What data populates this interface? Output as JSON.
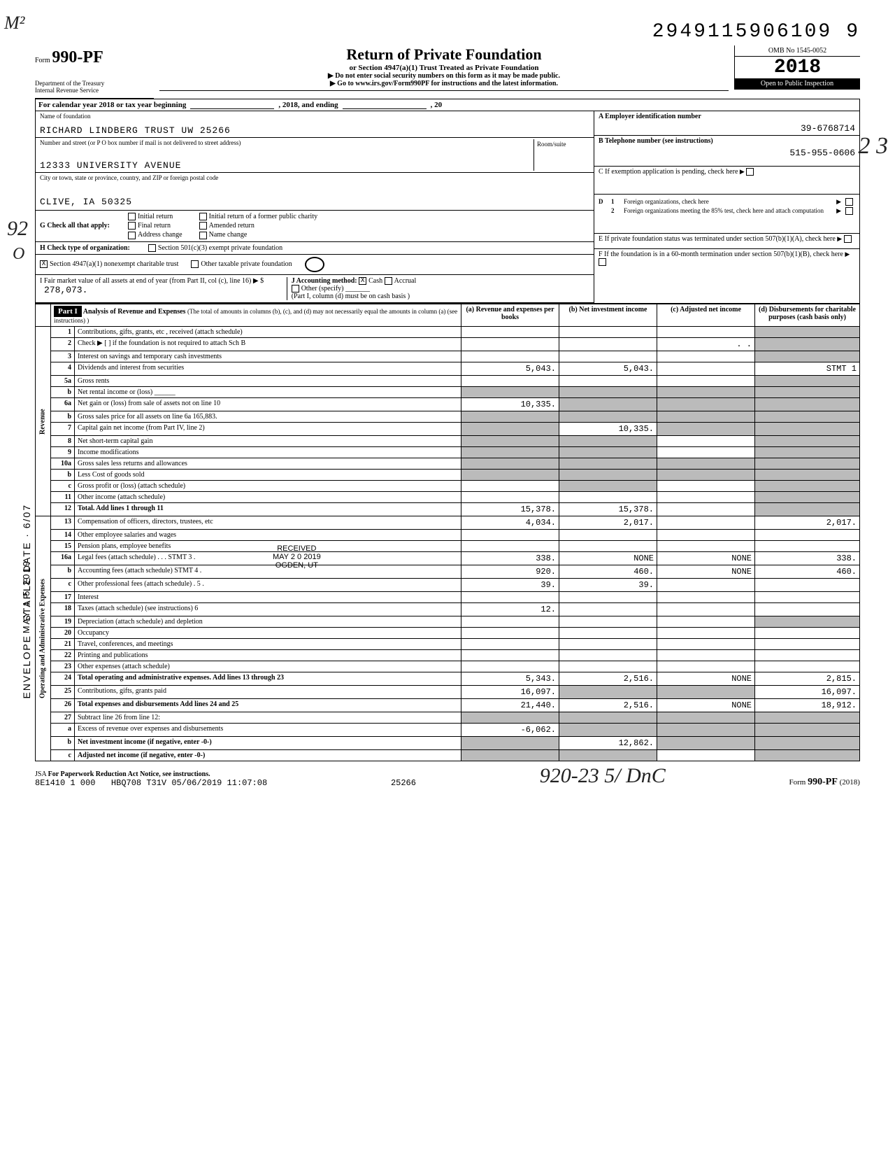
{
  "doc_number": "2949115906109",
  "doc_number_last": "9",
  "form": {
    "prefix": "Form",
    "number": "990-PF"
  },
  "dept": "Department of the Treasury\nInternal Revenue Service",
  "title": "Return of Private Foundation",
  "subtitle": "or Section 4947(a)(1) Trust Treated as Private Foundation",
  "instr1": "▶ Do not enter social security numbers on this form as it may be made public.",
  "instr2": "▶ Go to www.irs.gov/Form990PF for instructions and the latest information.",
  "omb": "OMB No 1545-0052",
  "year": "2018",
  "inspection": "Open to Public Inspection",
  "calendar_row": {
    "prefix": "For calendar year 2018 or tax year beginning",
    "mid": ", 2018, and ending",
    "suffix": ", 20"
  },
  "name_label": "Name of foundation",
  "name": "RICHARD LINDBERG TRUST UW 25266",
  "addr_label": "Number and street (or P O  box number if mail is not delivered to street address)",
  "addr": "12333 UNIVERSITY AVENUE",
  "room_label": "Room/suite",
  "city_label": "City or town, state or province, country, and ZIP or foreign postal code",
  "city": "CLIVE, IA 50325",
  "A_label": "A   Employer identification number",
  "A_value": "39-6768714",
  "B_label": "B   Telephone number (see instructions)",
  "B_value": "515-955-0606",
  "C_label": "C   If exemption application is pending, check here",
  "D_items": [
    "Foreign organizations, check here",
    "Foreign organizations meeting the 85% test, check here and attach computation"
  ],
  "E_label": "E   If private foundation status was terminated under section 507(b)(1)(A), check here",
  "F_label": "F   If the foundation is in a 60-month termination under section 507(b)(1)(B), check here",
  "G": {
    "lead": "G  Check all that apply:",
    "opts": [
      "Initial return",
      "Final return",
      "Address change",
      "Initial return of a former public charity",
      "Amended return",
      "Name change"
    ]
  },
  "H": {
    "lead": "H  Check type of organization:",
    "opts": [
      "Section 501(c)(3) exempt private foundation",
      "Section 4947(a)(1) nonexempt charitable trust",
      "Other taxable private foundation"
    ],
    "checked_index": 1
  },
  "I": {
    "text": "I   Fair market value of all assets at end of year (from Part II, col (c), line 16) ▶ $",
    "amount": "278,073."
  },
  "J": {
    "lead": "J  Accounting method:",
    "opts": [
      "Cash",
      "Accrual"
    ],
    "checked_index": 0,
    "other": "Other (specify)",
    "note": "(Part I, column (d) must be on cash basis )"
  },
  "part1": {
    "label": "Part I",
    "title": "Analysis of Revenue and Expenses",
    "title_note": "(The total of amounts in columns (b), (c), and (d) may not necessarily equal the amounts in column (a) (see instructions) )",
    "cols": [
      "(a) Revenue and expenses per books",
      "(b) Net investment income",
      "(c) Adjusted net income",
      "(d) Disbursements for charitable purposes (cash basis only)"
    ]
  },
  "vert_labels": [
    "Revenue",
    "Operating and Administrative Expenses"
  ],
  "stamp_date": "MAY 1 5 2019",
  "received": {
    "l1": "RECEIVED",
    "l2": "MAY 2 0 2019",
    "l3": "OGDEN, UT"
  },
  "rows": [
    {
      "n": "1",
      "desc": "Contributions, gifts, grants, etc , received (attach schedule)",
      "a": "",
      "b": "",
      "c": "",
      "d": "",
      "d_shade": true
    },
    {
      "n": "2",
      "desc": "Check ▶ [ ] if the foundation is not required to attach Sch B",
      "a": "",
      "b": "",
      "c": ". .",
      "d": "",
      "d_shade": true,
      "b_shade": false
    },
    {
      "n": "3",
      "desc": "Interest on savings and temporary cash investments",
      "a": "",
      "b": "",
      "c": "",
      "d": "",
      "d_shade": true
    },
    {
      "n": "4",
      "desc": "Dividends and interest from securities",
      "a": "5,043.",
      "b": "5,043.",
      "c": "",
      "d": "STMT 1",
      "d_shade": false
    },
    {
      "n": "5a",
      "desc": "Gross rents",
      "a": "",
      "b": "",
      "c": "",
      "d": "",
      "d_shade": true
    },
    {
      "n": "b",
      "desc": "Net rental income or (loss) ______",
      "a": "",
      "b": "",
      "c": "",
      "d": "",
      "shade_all": true
    },
    {
      "n": "6a",
      "desc": "Net gain or (loss) from sale of assets not on line 10",
      "a": "10,335.",
      "b": "",
      "c": "",
      "d": "",
      "b_shade": true,
      "c_shade": true,
      "d_shade": true
    },
    {
      "n": "b",
      "desc": "Gross sales price for all assets on line 6a        165,883.",
      "a": "",
      "b": "",
      "c": "",
      "d": "",
      "shade_all": true
    },
    {
      "n": "7",
      "desc": "Capital gain net income (from Part IV, line 2)",
      "a": "",
      "b": "10,335.",
      "c": "",
      "d": "",
      "a_shade": true,
      "c_shade": true,
      "d_shade": true
    },
    {
      "n": "8",
      "desc": "Net short-term capital gain",
      "a": "",
      "b": "",
      "c": "",
      "d": "",
      "a_shade": true,
      "b_shade": true,
      "d_shade": true
    },
    {
      "n": "9",
      "desc": "Income modifications",
      "a": "",
      "b": "",
      "c": "",
      "d": "",
      "a_shade": true,
      "b_shade": true,
      "d_shade": true
    },
    {
      "n": "10a",
      "desc": "Gross sales less returns and allowances",
      "a": "",
      "b": "",
      "c": "",
      "d": "",
      "shade_all": true
    },
    {
      "n": "b",
      "desc": "Less Cost of goods sold",
      "a": "",
      "b": "",
      "c": "",
      "d": "",
      "shade_all": true
    },
    {
      "n": "c",
      "desc": "Gross profit or (loss) (attach schedule)",
      "a": "",
      "b": "",
      "c": "",
      "d": "",
      "b_shade": true,
      "d_shade": true
    },
    {
      "n": "11",
      "desc": "Other income (attach schedule)",
      "a": "",
      "b": "",
      "c": "",
      "d": "",
      "d_shade": true
    },
    {
      "n": "12",
      "desc": "Total. Add lines 1 through 11",
      "a": "15,378.",
      "b": "15,378.",
      "c": "",
      "d": "",
      "d_shade": true,
      "bold": true
    },
    {
      "n": "13",
      "desc": "Compensation of officers, directors, trustees, etc",
      "a": "4,034.",
      "b": "2,017.",
      "c": "",
      "d": "2,017."
    },
    {
      "n": "14",
      "desc": "Other employee salaries and wages",
      "a": "",
      "b": "",
      "c": "",
      "d": ""
    },
    {
      "n": "15",
      "desc": "Pension plans, employee benefits",
      "a": "",
      "b": "",
      "c": "",
      "d": ""
    },
    {
      "n": "16a",
      "desc": "Legal fees (attach schedule) . . . STMT 3 .",
      "a": "338.",
      "b": "NONE",
      "c": "NONE",
      "d": "338."
    },
    {
      "n": "b",
      "desc": "Accounting fees (attach schedule) STMT 4 .",
      "a": "920.",
      "b": "460.",
      "c": "NONE",
      "d": "460."
    },
    {
      "n": "c",
      "desc": "Other professional fees (attach schedule) . 5 .",
      "a": "39.",
      "b": "39.",
      "c": "",
      "d": ""
    },
    {
      "n": "17",
      "desc": "Interest",
      "a": "",
      "b": "",
      "c": "",
      "d": ""
    },
    {
      "n": "18",
      "desc": "Taxes (attach schedule) (see instructions) 6",
      "a": "12.",
      "b": "",
      "c": "",
      "d": ""
    },
    {
      "n": "19",
      "desc": "Depreciation (attach schedule) and depletion",
      "a": "",
      "b": "",
      "c": "",
      "d": "",
      "d_shade": true
    },
    {
      "n": "20",
      "desc": "Occupancy",
      "a": "",
      "b": "",
      "c": "",
      "d": ""
    },
    {
      "n": "21",
      "desc": "Travel, conferences, and meetings",
      "a": "",
      "b": "",
      "c": "",
      "d": ""
    },
    {
      "n": "22",
      "desc": "Printing and publications",
      "a": "",
      "b": "",
      "c": "",
      "d": ""
    },
    {
      "n": "23",
      "desc": "Other expenses (attach schedule)",
      "a": "",
      "b": "",
      "c": "",
      "d": ""
    },
    {
      "n": "24",
      "desc": "Total operating and administrative expenses. Add lines 13 through 23",
      "a": "5,343.",
      "b": "2,516.",
      "c": "NONE",
      "d": "2,815.",
      "bold": true
    },
    {
      "n": "25",
      "desc": "Contributions, gifts, grants paid",
      "a": "16,097.",
      "b": "",
      "c": "",
      "d": "16,097.",
      "b_shade": true,
      "c_shade": true
    },
    {
      "n": "26",
      "desc": "Total expenses and disbursements Add lines 24 and 25",
      "a": "21,440.",
      "b": "2,516.",
      "c": "NONE",
      "d": "18,912.",
      "bold": true
    },
    {
      "n": "27",
      "desc": "Subtract line 26 from line 12:",
      "a": "",
      "b": "",
      "c": "",
      "d": "",
      "shade_all": true
    },
    {
      "n": "a",
      "desc": "Excess of revenue over expenses and disbursements",
      "a": "-6,062.",
      "b": "",
      "c": "",
      "d": "",
      "b_shade": true,
      "c_shade": true,
      "d_shade": true
    },
    {
      "n": "b",
      "desc": "Net investment income (if negative, enter -0-)",
      "a": "",
      "b": "12,862.",
      "c": "",
      "d": "",
      "a_shade": true,
      "c_shade": true,
      "d_shade": true,
      "bold": true
    },
    {
      "n": "c",
      "desc": "Adjusted net income (if negative, enter -0-)",
      "a": "",
      "b": "",
      "c": "",
      "d": "",
      "a_shade": true,
      "b_shade": true,
      "d_shade": true,
      "bold": true
    }
  ],
  "footer": {
    "jsa": "JSA",
    "paperwork": "For Paperwork Reduction Act Notice, see instructions.",
    "code": "8E1410 1 000",
    "line": "HBQ708 T31V 05/06/2019 11:07:08",
    "mid": "25266",
    "formref": "Form 990-PF (2018)"
  },
  "handwriting": {
    "top": "M²",
    "left92": "92",
    "leftO": "O",
    "right1": "2\n3",
    "sig": "920-23   5/ DnC"
  },
  "margin_vert": "ENVELOPE  ·  STAPLE DATE  ·  6/07"
}
